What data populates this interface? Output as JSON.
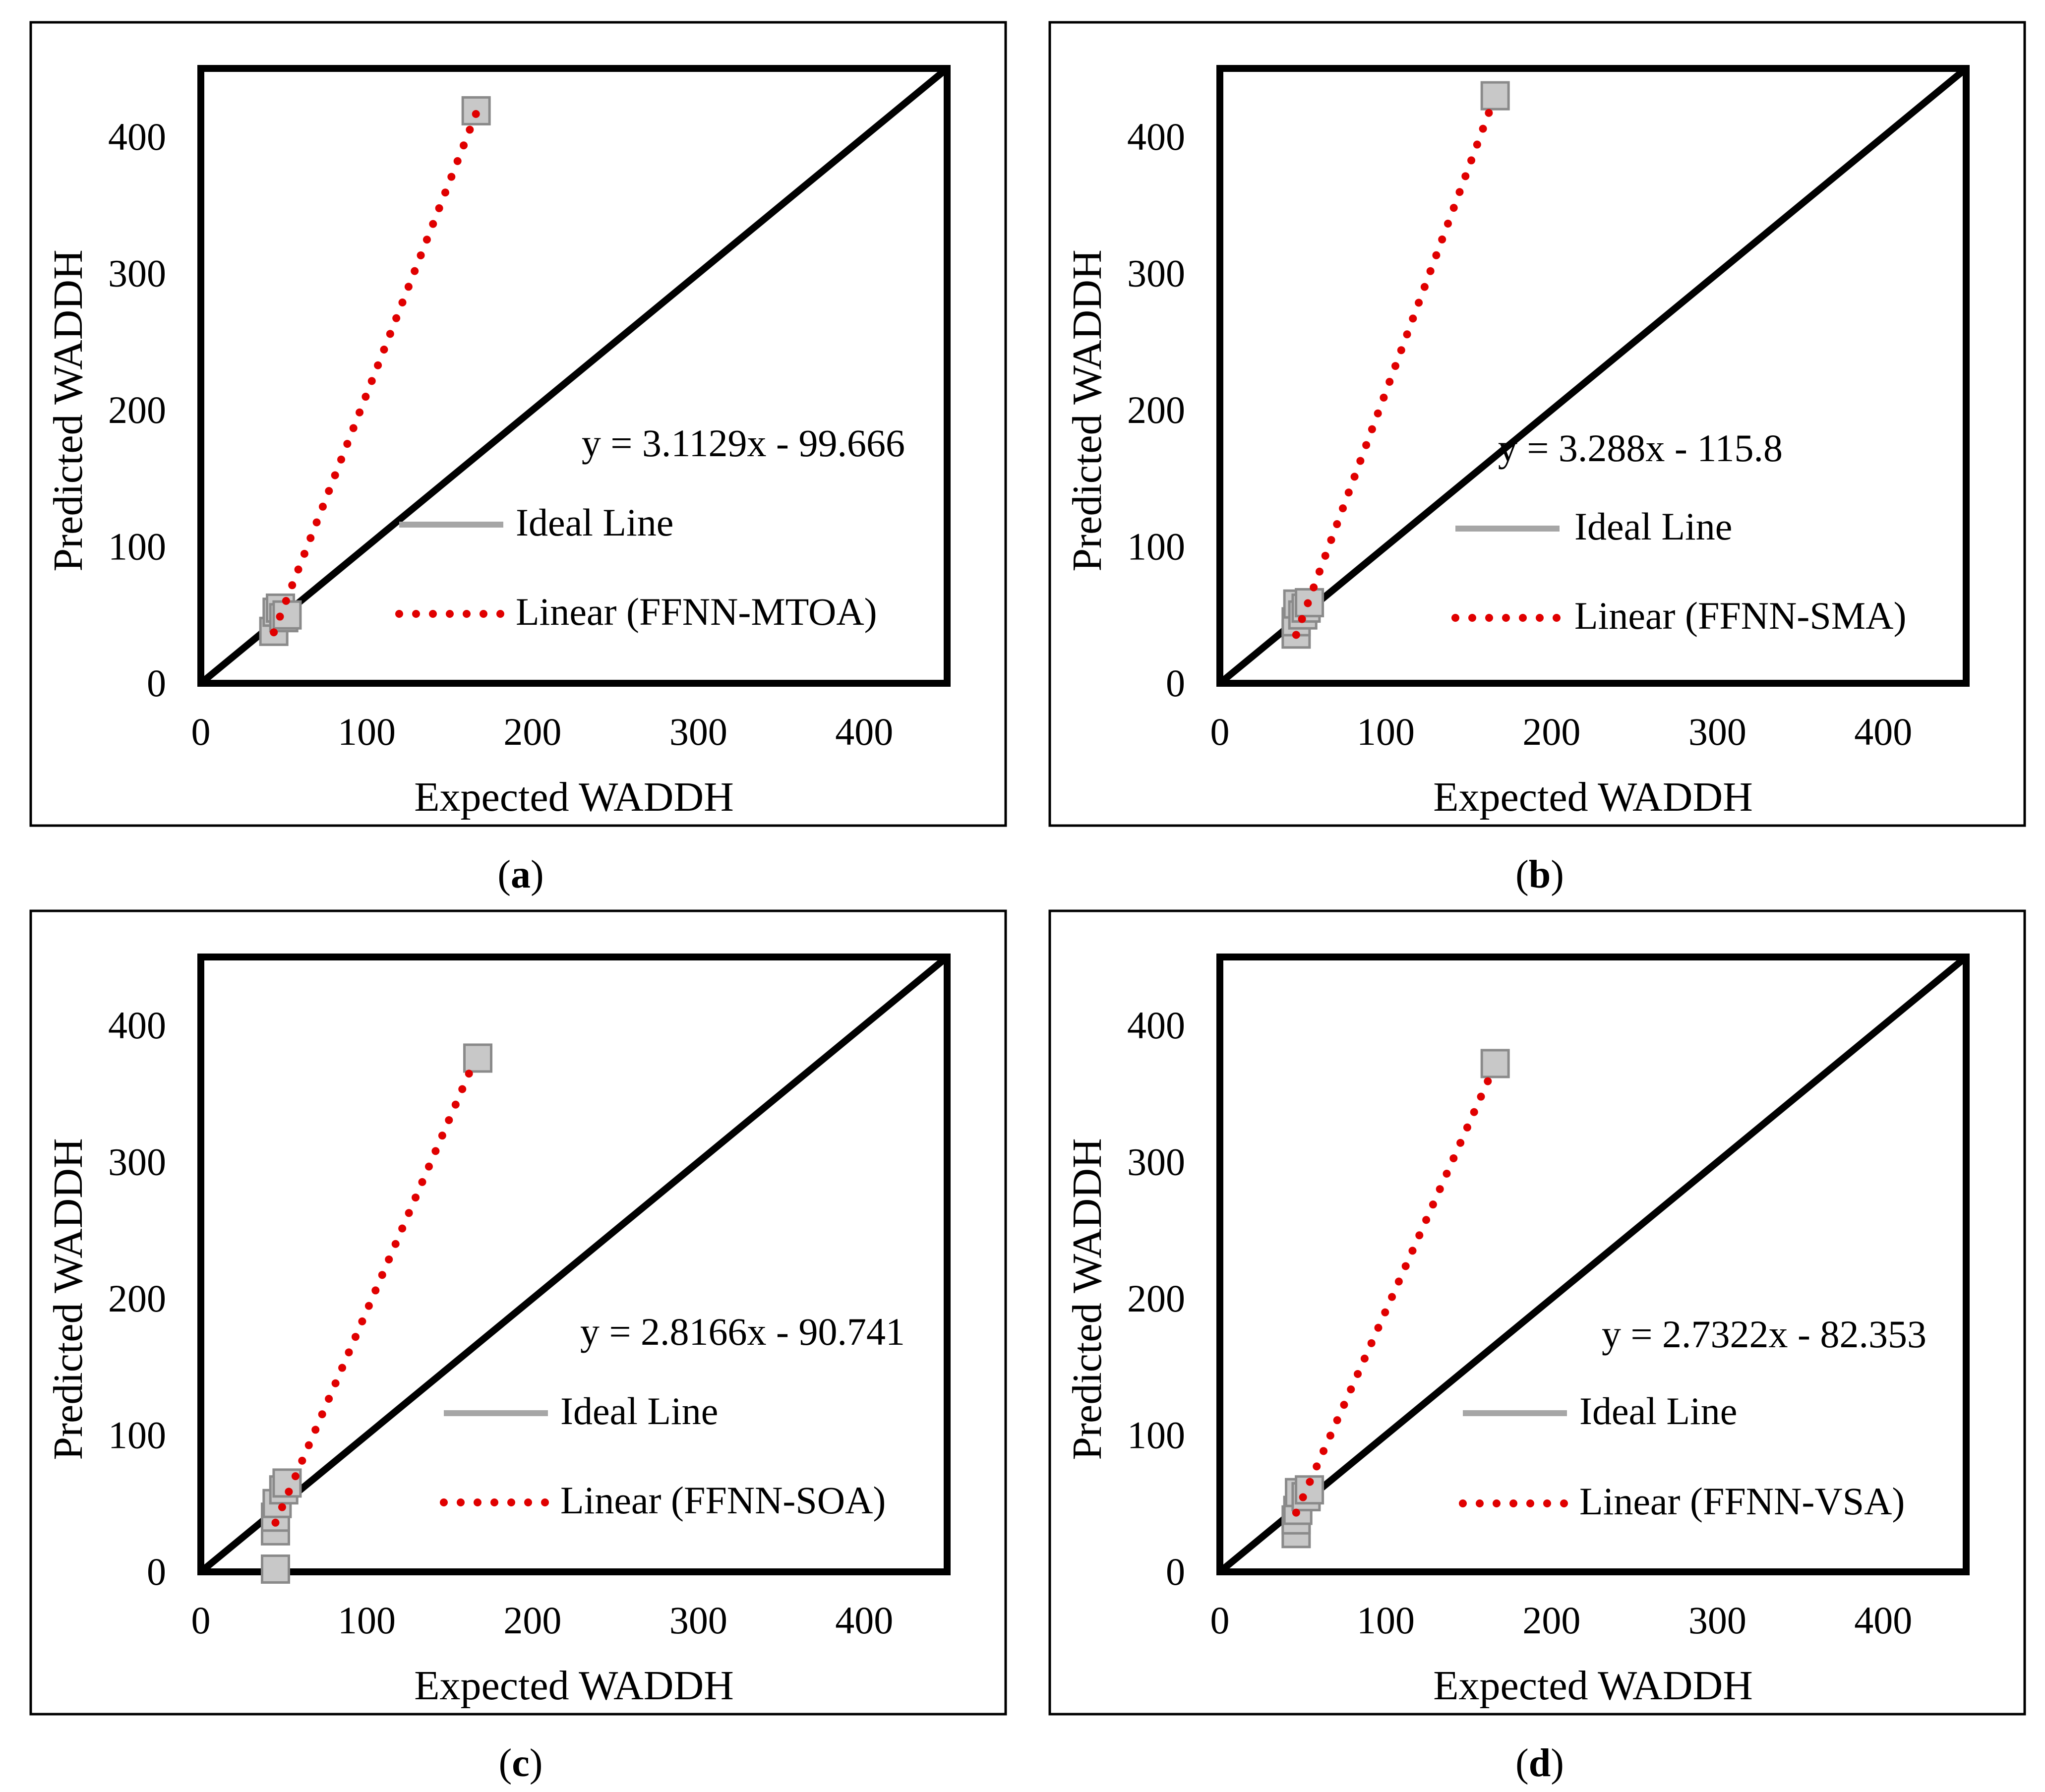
{
  "chart_data": [
    {
      "type": "scatter",
      "panel_label": "a",
      "xlabel": "Expected WADDH",
      "ylabel": "Predicted WADDH",
      "xlim": [
        0,
        450
      ],
      "ylim": [
        0,
        450
      ],
      "xticks": [
        0,
        100,
        200,
        300,
        400
      ],
      "yticks": [
        0,
        100,
        200,
        300,
        400
      ],
      "grid": false,
      "legend": {
        "ideal_label": "Ideal Line",
        "trend_label": "Linear (FFNN-MTOA)"
      },
      "equation": "y = 3.1129x - 99.666",
      "trendline": {
        "slope": 3.1129,
        "intercept": -99.666,
        "x_range": [
          44,
          166
        ]
      },
      "points": [
        {
          "x": 44,
          "y": 38
        },
        {
          "x": 46,
          "y": 52
        },
        {
          "x": 48,
          "y": 55
        },
        {
          "x": 50,
          "y": 48
        },
        {
          "x": 52,
          "y": 50
        },
        {
          "x": 166,
          "y": 419
        }
      ]
    },
    {
      "type": "scatter",
      "panel_label": "b",
      "xlabel": "Expected WADDH",
      "ylabel": "Predicted WADDH",
      "xlim": [
        0,
        450
      ],
      "ylim": [
        0,
        450
      ],
      "xticks": [
        0,
        100,
        200,
        300,
        400
      ],
      "yticks": [
        0,
        100,
        200,
        300,
        400
      ],
      "grid": false,
      "legend": {
        "ideal_label": "Ideal Line",
        "trend_label": "Linear (FFNN-SMA)"
      },
      "equation": "y = 3.288x - 115.8",
      "trendline": {
        "slope": 3.288,
        "intercept": -115.8,
        "x_range": [
          46,
          164
        ]
      },
      "points": [
        {
          "x": 46,
          "y": 36
        },
        {
          "x": 46,
          "y": 45
        },
        {
          "x": 47,
          "y": 58
        },
        {
          "x": 50,
          "y": 50
        },
        {
          "x": 52,
          "y": 55
        },
        {
          "x": 54,
          "y": 59
        },
        {
          "x": 166,
          "y": 430
        }
      ]
    },
    {
      "type": "scatter",
      "panel_label": "c",
      "xlabel": "Expected WADDH",
      "ylabel": "Predicted WADDH",
      "xlim": [
        0,
        450
      ],
      "ylim": [
        0,
        450
      ],
      "xticks": [
        0,
        100,
        200,
        300,
        400
      ],
      "yticks": [
        0,
        100,
        200,
        300,
        400
      ],
      "grid": false,
      "legend": {
        "ideal_label": "Ideal Line",
        "trend_label": "Linear (FFNN-SOA)"
      },
      "equation": "y = 2.8166x - 90.741",
      "trendline": {
        "slope": 2.8166,
        "intercept": -90.741,
        "x_range": [
          45,
          165
        ]
      },
      "points": [
        {
          "x": 45,
          "y": 2
        },
        {
          "x": 45,
          "y": 30
        },
        {
          "x": 45,
          "y": 40
        },
        {
          "x": 46,
          "y": 50
        },
        {
          "x": 50,
          "y": 60
        },
        {
          "x": 52,
          "y": 65
        },
        {
          "x": 167,
          "y": 376
        }
      ]
    },
    {
      "type": "scatter",
      "panel_label": "d",
      "xlabel": "Expected WADDH",
      "ylabel": "Predicted WADDH",
      "xlim": [
        0,
        450
      ],
      "ylim": [
        0,
        450
      ],
      "xticks": [
        0,
        100,
        200,
        300,
        400
      ],
      "yticks": [
        0,
        100,
        200,
        300,
        400
      ],
      "grid": false,
      "legend": {
        "ideal_label": "Ideal Line",
        "trend_label": "Linear (FFNN-VSA)"
      },
      "equation": "y = 2.7322x - 82.353",
      "trendline": {
        "slope": 2.7322,
        "intercept": -82.353,
        "x_range": [
          46,
          163
        ]
      },
      "points": [
        {
          "x": 46,
          "y": 28
        },
        {
          "x": 46,
          "y": 38
        },
        {
          "x": 47,
          "y": 45
        },
        {
          "x": 48,
          "y": 58
        },
        {
          "x": 52,
          "y": 55
        },
        {
          "x": 54,
          "y": 60
        },
        {
          "x": 166,
          "y": 372
        }
      ]
    }
  ]
}
